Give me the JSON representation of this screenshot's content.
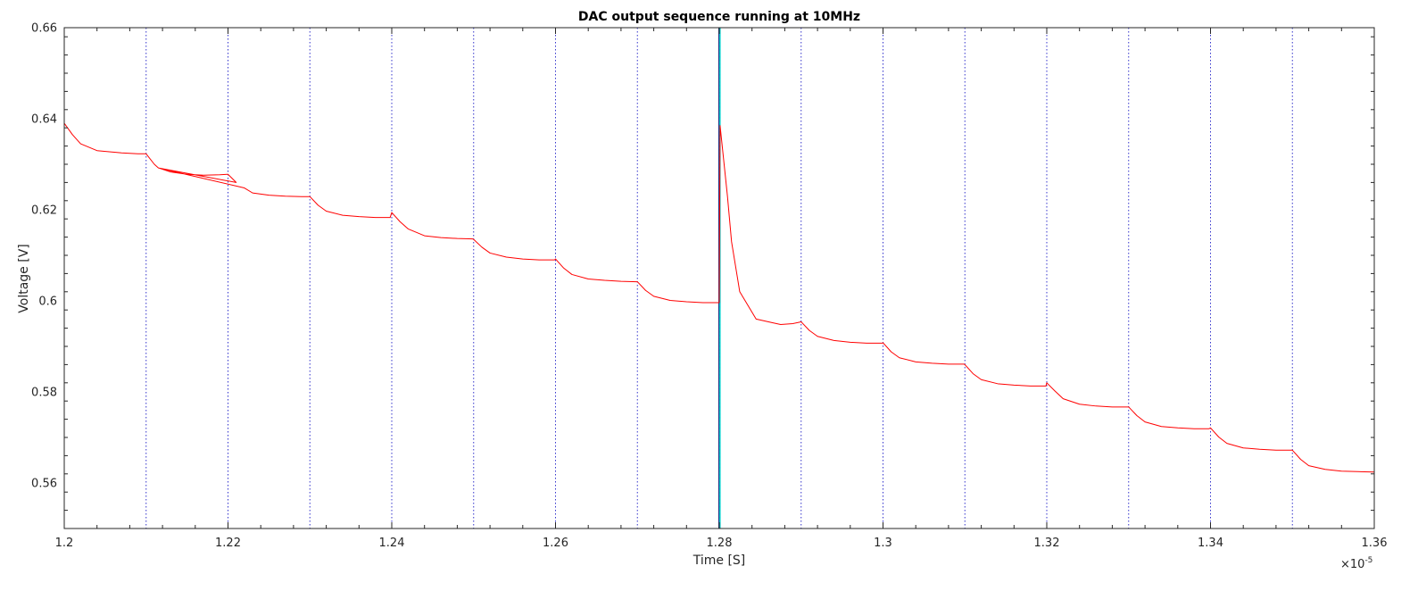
{
  "chart_data": {
    "type": "line",
    "title": "DAC output sequence running at 10MHz",
    "xlabel": "Time [S]",
    "ylabel": "Voltage [V]",
    "x_exponent_label": "×10",
    "x_exponent_power": "-5",
    "xlim": [
      1.2,
      1.36
    ],
    "ylim": [
      0.55,
      0.66
    ],
    "x_ticks": [
      1.2,
      1.22,
      1.24,
      1.26,
      1.28,
      1.3,
      1.32,
      1.34,
      1.36
    ],
    "x_tick_labels": [
      "1.2",
      "1.22",
      "1.24",
      "1.26",
      "1.28",
      "1.3",
      "1.32",
      "1.34",
      "1.36"
    ],
    "y_ticks": [
      0.56,
      0.58,
      0.6,
      0.62,
      0.64,
      0.66
    ],
    "y_tick_labels": [
      "0.56",
      "0.58",
      "0.6",
      "0.62",
      "0.64",
      "0.66"
    ],
    "grid": false,
    "clock_edges_x": [
      1.21,
      1.22,
      1.23,
      1.24,
      1.25,
      1.26,
      1.27,
      1.28,
      1.29,
      1.3,
      1.31,
      1.32,
      1.33,
      1.34,
      1.35
    ],
    "highlight_edge_x": 1.28,
    "colors": {
      "signal": "#ff0000",
      "clock_edges": "#3333cc",
      "highlight": "#00cccc",
      "axis": "#262626"
    },
    "series": [
      {
        "x": [
          1.2,
          1.201,
          1.202,
          1.204,
          1.207,
          1.209,
          1.21,
          1.211,
          1.2115,
          1.213,
          1.215,
          1.217,
          1.219,
          1.22,
          1.221,
          1.2115,
          1.222,
          1.223,
          1.225,
          1.227,
          1.229,
          1.23,
          1.231,
          1.232,
          1.234,
          1.236,
          1.238,
          1.2398,
          1.24,
          1.241,
          1.242,
          1.244,
          1.246,
          1.248,
          1.2499,
          1.25,
          1.251,
          1.252,
          1.254,
          1.256,
          1.258,
          1.2599,
          1.26,
          1.261,
          1.262,
          1.264,
          1.266,
          1.268,
          1.2699,
          1.27,
          1.271,
          1.272,
          1.274,
          1.276,
          1.278,
          1.2799,
          1.28,
          1.2801,
          1.281,
          1.2815,
          1.2825,
          1.2845,
          1.2865,
          1.2875,
          1.289,
          1.29,
          1.291,
          1.292,
          1.294,
          1.296,
          1.298,
          1.2999,
          1.3,
          1.301,
          1.302,
          1.304,
          1.306,
          1.308,
          1.3099,
          1.31,
          1.311,
          1.312,
          1.314,
          1.316,
          1.318,
          1.3199,
          1.32,
          1.321,
          1.322,
          1.324,
          1.326,
          1.328,
          1.3299,
          1.33,
          1.331,
          1.332,
          1.334,
          1.336,
          1.338,
          1.3398,
          1.34,
          1.341,
          1.342,
          1.344,
          1.346,
          1.348,
          1.3499,
          1.35,
          1.351,
          1.352,
          1.354,
          1.356,
          1.358,
          1.36
        ],
        "y": [
          0.639,
          0.6365,
          0.6345,
          0.633,
          0.6325,
          0.6323,
          0.6323,
          0.63,
          0.6292,
          0.6283,
          0.6278,
          0.6276,
          0.6277,
          0.6278,
          0.626,
          0.6292,
          0.6248,
          0.6237,
          0.6232,
          0.623,
          0.6229,
          0.6229,
          0.621,
          0.6197,
          0.6188,
          0.6185,
          0.6183,
          0.6183,
          0.6194,
          0.6174,
          0.6158,
          0.6143,
          0.6139,
          0.6137,
          0.6136,
          0.6135,
          0.6118,
          0.6105,
          0.6096,
          0.6092,
          0.609,
          0.609,
          0.6092,
          0.6072,
          0.6058,
          0.6048,
          0.6045,
          0.6043,
          0.6042,
          0.6042,
          0.6023,
          0.601,
          0.6001,
          0.5998,
          0.5996,
          0.5996,
          0.5996,
          0.6385,
          0.623,
          0.613,
          0.602,
          0.596,
          0.5952,
          0.5948,
          0.595,
          0.5954,
          0.5935,
          0.5922,
          0.5913,
          0.5909,
          0.5907,
          0.5907,
          0.5908,
          0.5888,
          0.5875,
          0.5866,
          0.5863,
          0.5861,
          0.5861,
          0.586,
          0.584,
          0.5827,
          0.5818,
          0.5815,
          0.5813,
          0.5813,
          0.582,
          0.5802,
          0.5785,
          0.5773,
          0.5769,
          0.5767,
          0.5767,
          0.5767,
          0.5748,
          0.5734,
          0.5724,
          0.5721,
          0.5719,
          0.5719,
          0.5721,
          0.5701,
          0.5687,
          0.5677,
          0.5674,
          0.5672,
          0.5672,
          0.5672,
          0.5652,
          0.5638,
          0.563,
          0.5626,
          0.5625,
          0.5624
        ]
      }
    ]
  }
}
